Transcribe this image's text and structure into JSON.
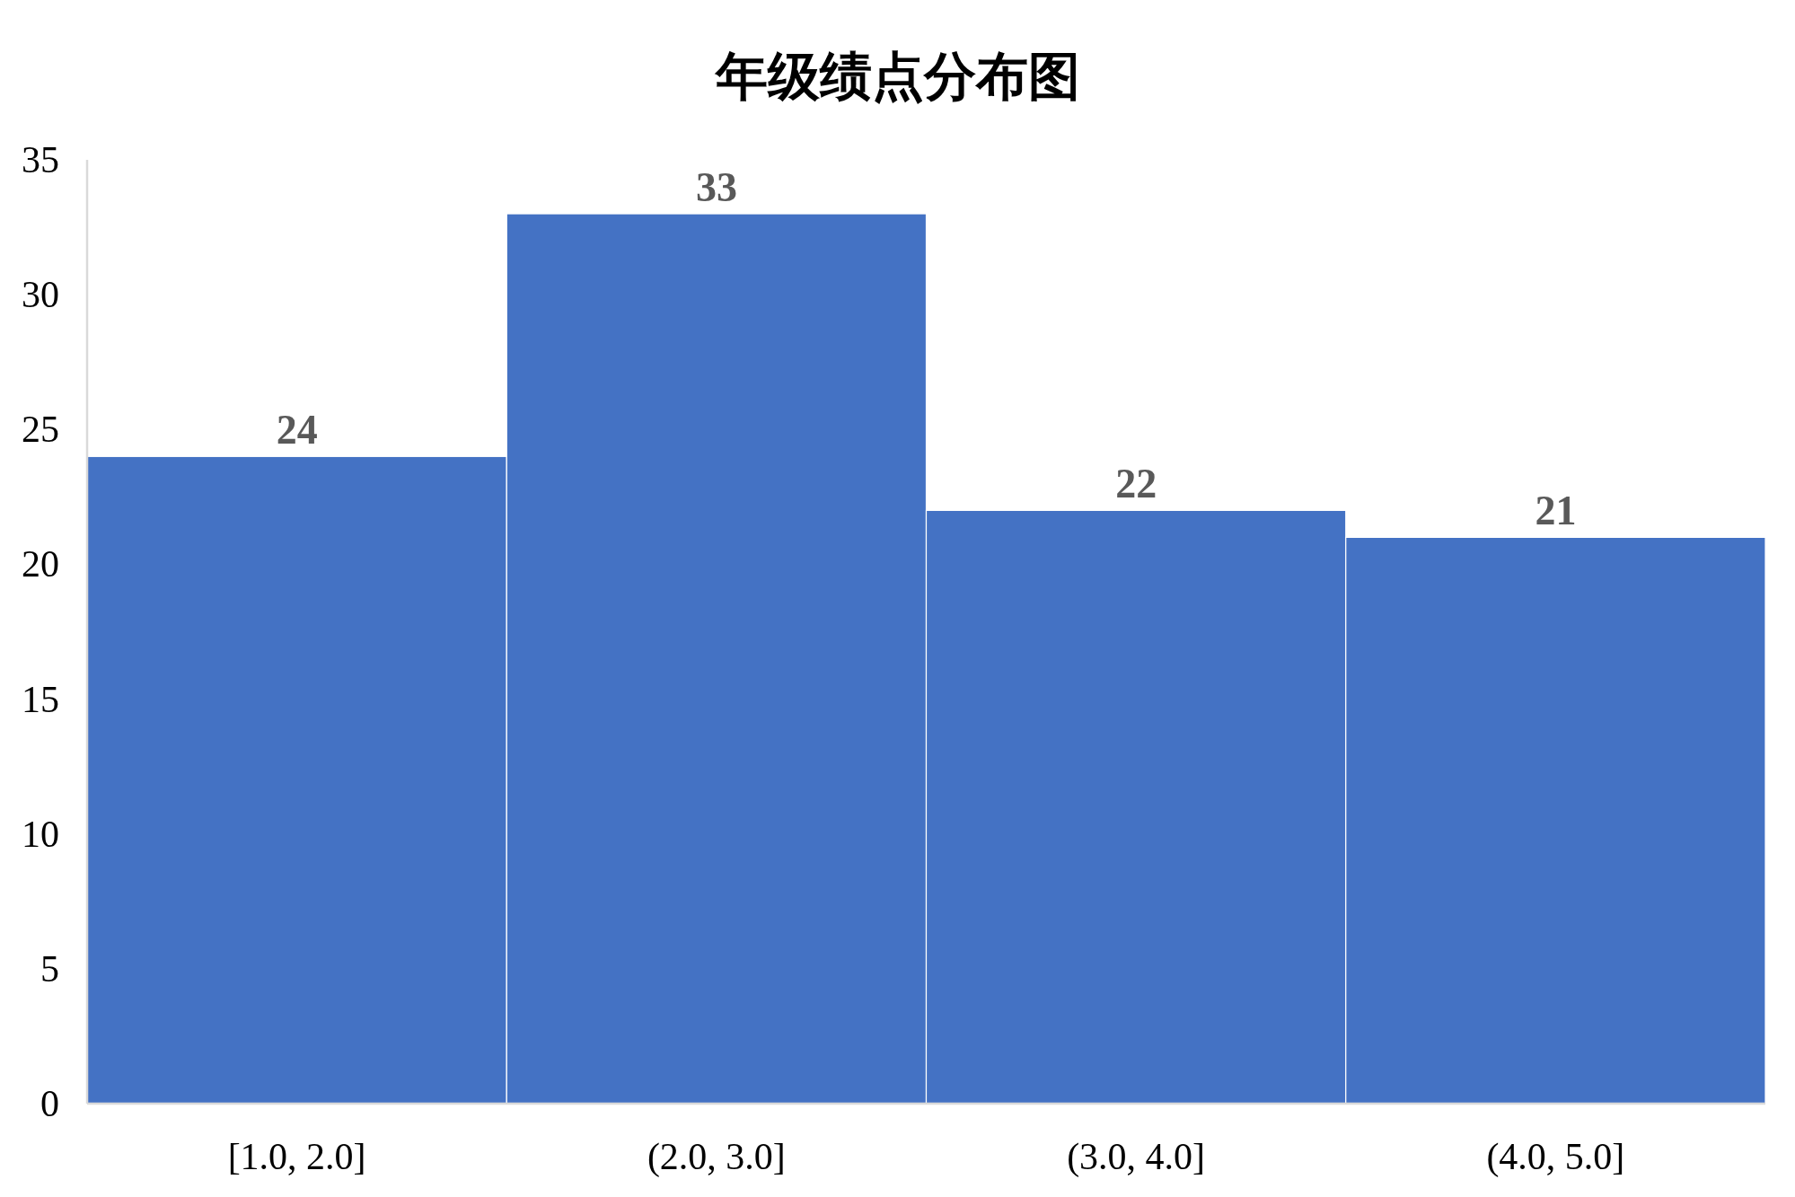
{
  "chart_data": {
    "type": "bar",
    "title": "年级绩点分布图",
    "categories": [
      "[1.0, 2.0]",
      "(2.0, 3.0]",
      "(3.0, 4.0]",
      "(4.0, 5.0]"
    ],
    "values": [
      24,
      33,
      22,
      21
    ],
    "color": "#4472c4",
    "ylim": [
      0,
      35
    ],
    "yticks": [
      0,
      5,
      10,
      15,
      20,
      25,
      30,
      35
    ],
    "data_labels": true
  }
}
